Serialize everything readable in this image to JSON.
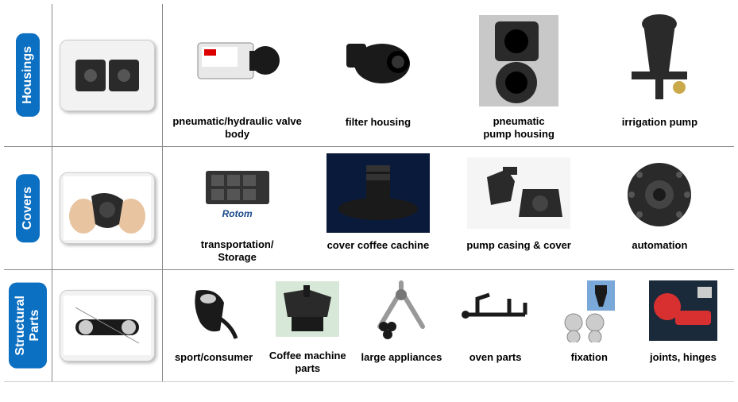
{
  "categories": [
    {
      "name": "Housings",
      "tab_bg": "#0b6fc2",
      "items": [
        {
          "label": "pneumatic/hydraulic valve body"
        },
        {
          "label": "filter housing"
        },
        {
          "label": "pneumatic\npump housing"
        },
        {
          "label": "irrigation pump"
        }
      ]
    },
    {
      "name": "Covers",
      "tab_bg": "#0b6fc2",
      "brand_text": "Rotom",
      "items": [
        {
          "label": "transportation/\nStorage"
        },
        {
          "label": "cover coffee cachine"
        },
        {
          "label": "pump casing & cover"
        },
        {
          "label": "automation"
        }
      ]
    },
    {
      "name": "Structural\nParts",
      "tab_bg": "#0b6fc2",
      "items": [
        {
          "label": "sport/consumer"
        },
        {
          "label": "Coffee machine\nparts"
        },
        {
          "label": "large appliances"
        },
        {
          "label": "oven parts"
        },
        {
          "label": "fixation"
        },
        {
          "label": "joints, hinges"
        }
      ]
    }
  ]
}
